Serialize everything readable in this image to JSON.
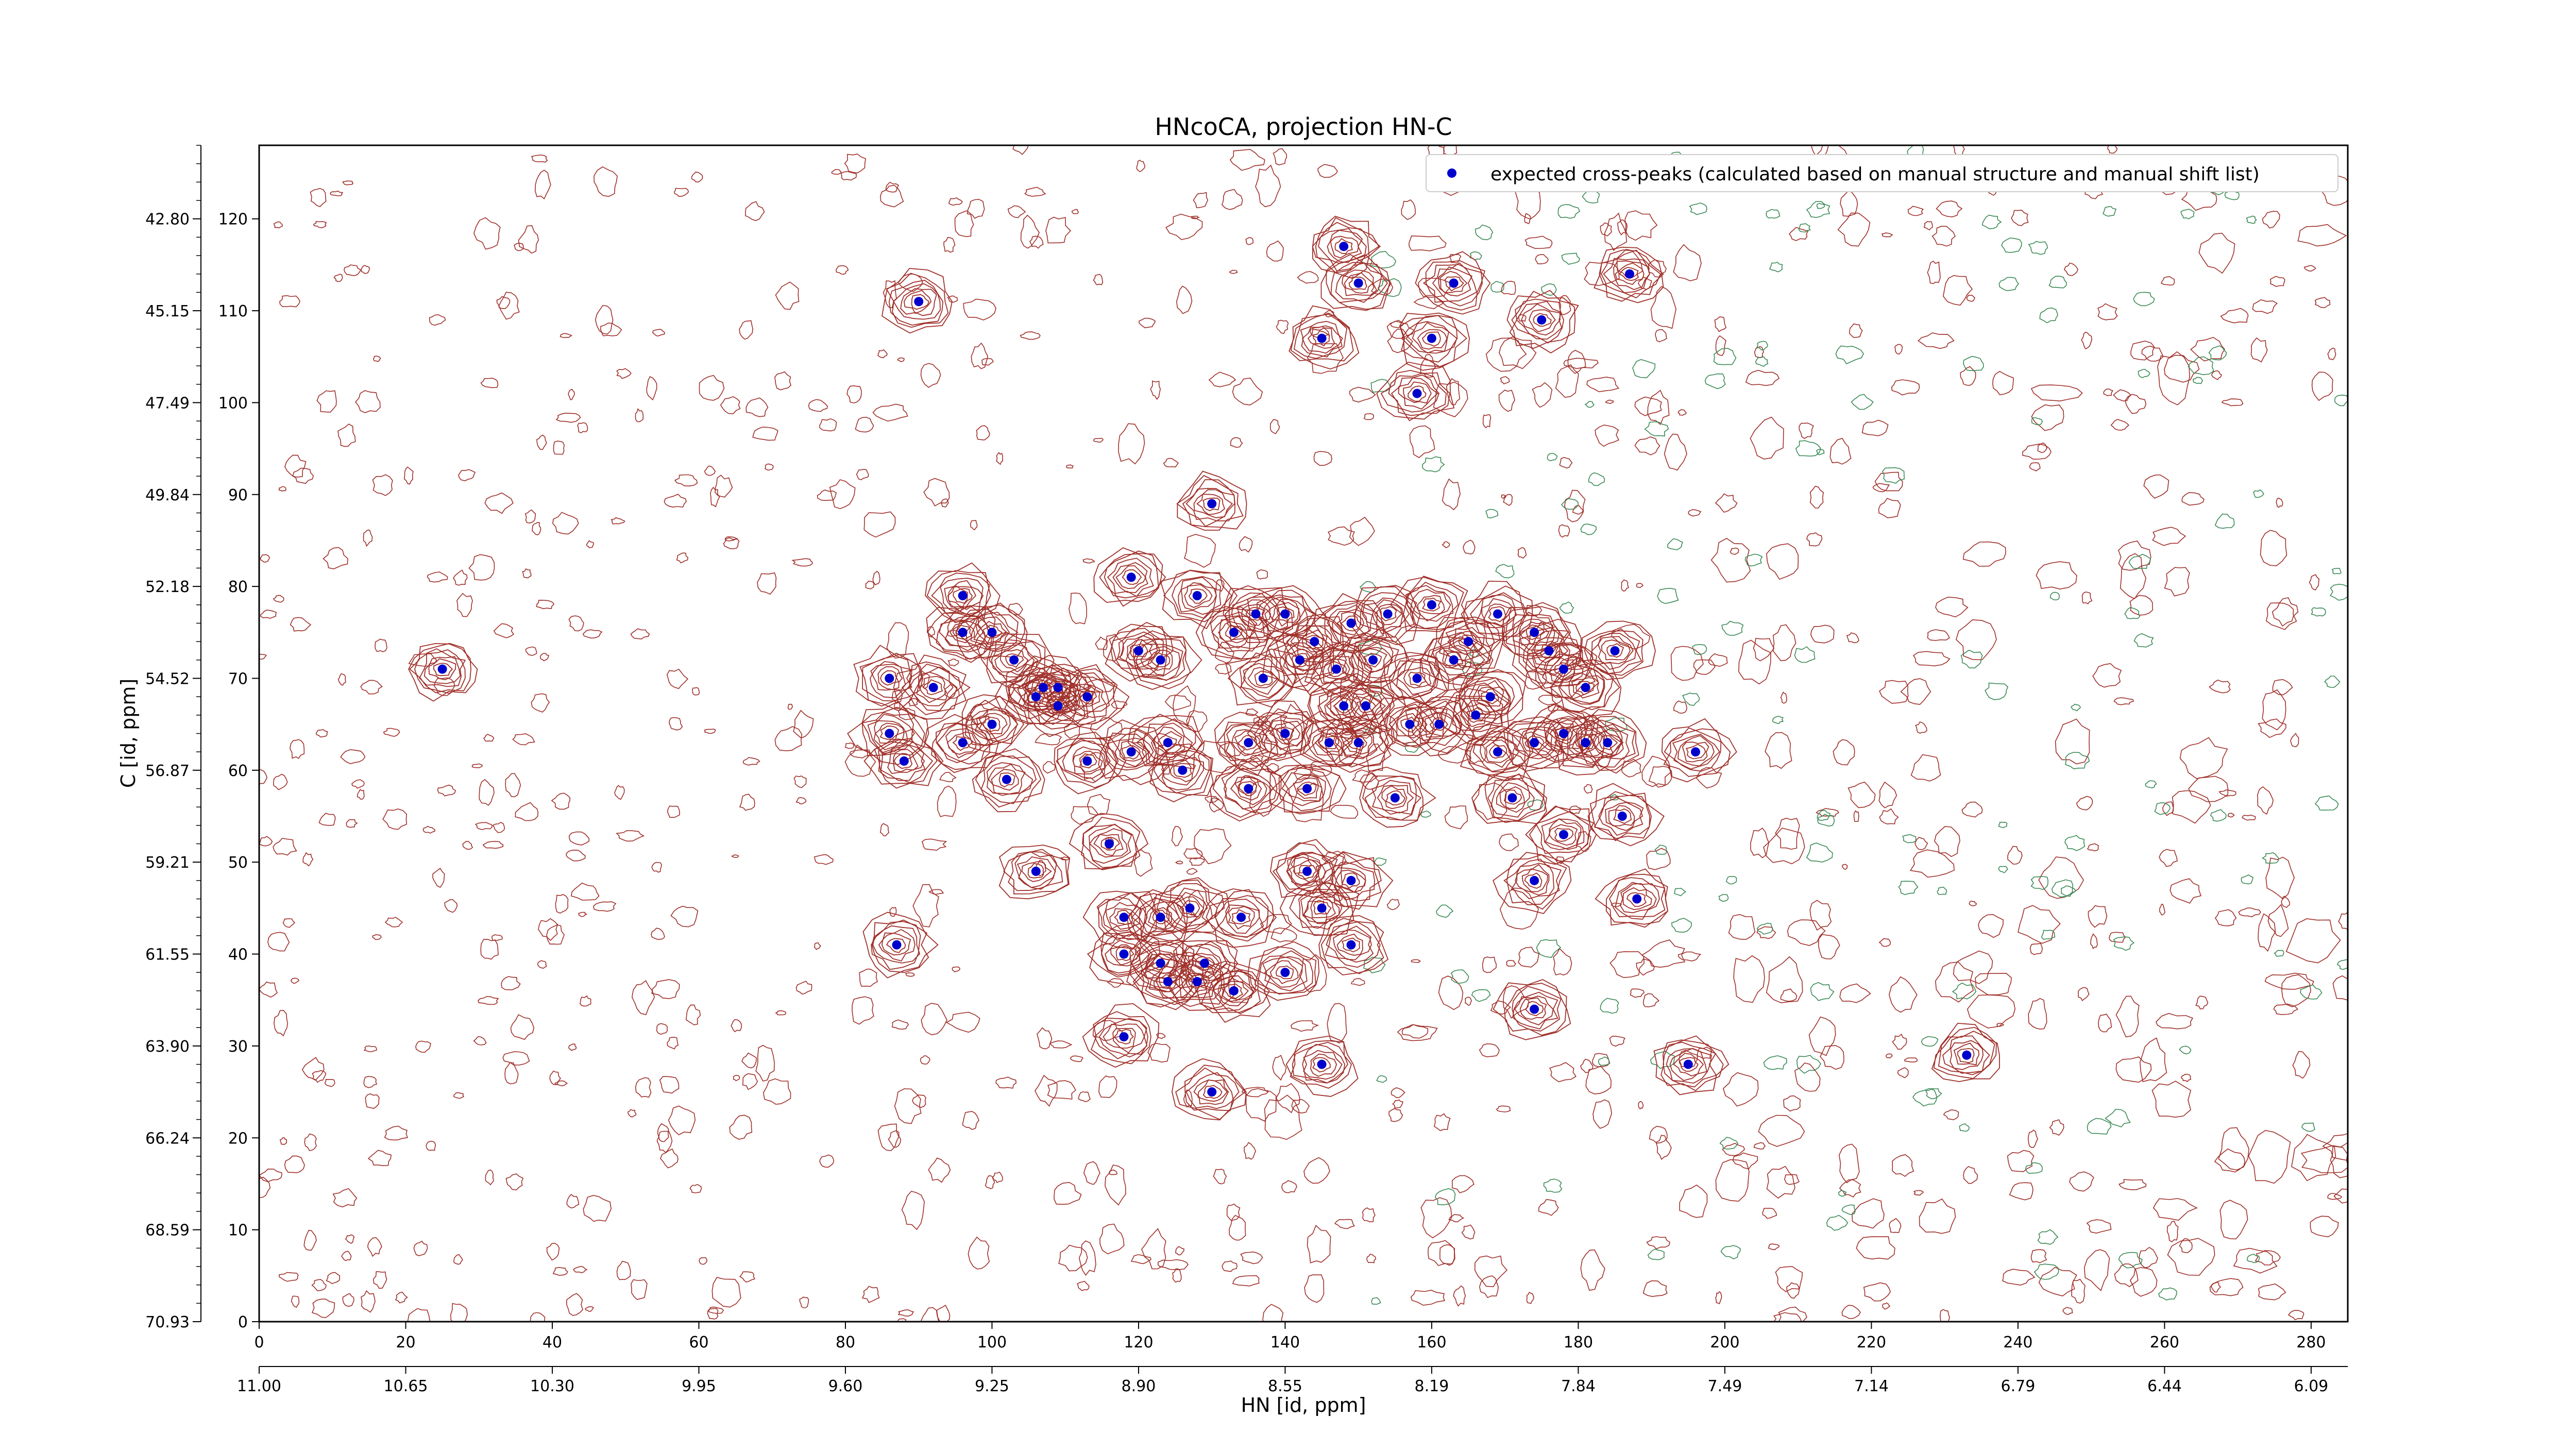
{
  "chart_data": {
    "type": "scatter",
    "title": "HNcoCA, projection HN-C",
    "xlabel": "HN [id, ppm]",
    "ylabel": "C [id, ppm]",
    "xlim": [
      0,
      285
    ],
    "ylim": [
      0,
      128
    ],
    "x_ticks": [
      0,
      20,
      40,
      60,
      80,
      100,
      120,
      140,
      160,
      180,
      200,
      220,
      240,
      260,
      280
    ],
    "y_ticks": [
      0,
      10,
      20,
      30,
      40,
      50,
      60,
      70,
      80,
      90,
      100,
      110,
      120
    ],
    "x_ppm_labels": [
      "11.00",
      "10.65",
      "10.30",
      "9.95",
      "9.60",
      "9.25",
      "8.90",
      "8.55",
      "8.19",
      "7.84",
      "7.49",
      "7.14",
      "6.79",
      "6.44",
      "6.09"
    ],
    "y_ppm_labels": [
      "70.93",
      "68.59",
      "66.24",
      "63.90",
      "61.55",
      "59.21",
      "56.87",
      "54.52",
      "52.18",
      "49.84",
      "47.49",
      "45.15",
      "42.80"
    ],
    "legend": {
      "position": "top-right",
      "label": "expected cross-peaks (calculated based on manual structure and manual shift list)"
    },
    "colors": {
      "peaks": "#0000cc",
      "positive_contour": "#a0302a",
      "negative_contour": "#3a8a55"
    },
    "series": [
      {
        "name": "expected cross-peaks (calculated based on manual structure and manual shift list)",
        "points": [
          [
            25,
            71
          ],
          [
            90,
            111
          ],
          [
            130,
            89
          ],
          [
            119,
            81
          ],
          [
            96,
            79
          ],
          [
            128,
            79
          ],
          [
            96,
            75
          ],
          [
            100,
            75
          ],
          [
            133,
            75
          ],
          [
            136,
            77
          ],
          [
            140,
            77
          ],
          [
            144,
            74
          ],
          [
            149,
            76
          ],
          [
            154,
            77
          ],
          [
            160,
            78
          ],
          [
            165,
            74
          ],
          [
            169,
            77
          ],
          [
            174,
            75
          ],
          [
            185,
            73
          ],
          [
            103,
            72
          ],
          [
            107,
            69
          ],
          [
            109,
            69
          ],
          [
            113,
            68
          ],
          [
            120,
            73
          ],
          [
            123,
            72
          ],
          [
            137,
            70
          ],
          [
            142,
            72
          ],
          [
            147,
            71
          ],
          [
            152,
            72
          ],
          [
            158,
            70
          ],
          [
            163,
            72
          ],
          [
            168,
            68
          ],
          [
            176,
            73
          ],
          [
            178,
            71
          ],
          [
            181,
            69
          ],
          [
            86,
            70
          ],
          [
            92,
            69
          ],
          [
            86,
            64
          ],
          [
            96,
            63
          ],
          [
            100,
            65
          ],
          [
            106,
            68
          ],
          [
            109,
            67
          ],
          [
            124,
            63
          ],
          [
            135,
            63
          ],
          [
            140,
            64
          ],
          [
            146,
            63
          ],
          [
            148,
            67
          ],
          [
            150,
            63
          ],
          [
            151,
            67
          ],
          [
            157,
            65
          ],
          [
            161,
            65
          ],
          [
            166,
            66
          ],
          [
            169,
            62
          ],
          [
            174,
            63
          ],
          [
            178,
            64
          ],
          [
            181,
            63
          ],
          [
            184,
            63
          ],
          [
            196,
            62
          ],
          [
            88,
            61
          ],
          [
            102,
            59
          ],
          [
            113,
            61
          ],
          [
            119,
            62
          ],
          [
            126,
            60
          ],
          [
            135,
            58
          ],
          [
            143,
            58
          ],
          [
            155,
            57
          ],
          [
            171,
            57
          ],
          [
            186,
            55
          ],
          [
            178,
            53
          ],
          [
            116,
            52
          ],
          [
            106,
            49
          ],
          [
            143,
            49
          ],
          [
            149,
            48
          ],
          [
            174,
            48
          ],
          [
            188,
            46
          ],
          [
            145,
            45
          ],
          [
            134,
            44
          ],
          [
            118,
            44
          ],
          [
            123,
            44
          ],
          [
            127,
            45
          ],
          [
            118,
            40
          ],
          [
            123,
            39
          ],
          [
            129,
            39
          ],
          [
            124,
            37
          ],
          [
            128,
            37
          ],
          [
            133,
            36
          ],
          [
            140,
            38
          ],
          [
            87,
            41
          ],
          [
            149,
            41
          ],
          [
            118,
            31
          ],
          [
            145,
            28
          ],
          [
            130,
            25
          ],
          [
            174,
            34
          ],
          [
            195,
            28
          ],
          [
            233,
            29
          ],
          [
            148,
            117
          ],
          [
            150,
            113
          ],
          [
            163,
            113
          ],
          [
            145,
            107
          ],
          [
            160,
            107
          ],
          [
            175,
            109
          ],
          [
            187,
            114
          ],
          [
            158,
            101
          ]
        ]
      }
    ]
  }
}
